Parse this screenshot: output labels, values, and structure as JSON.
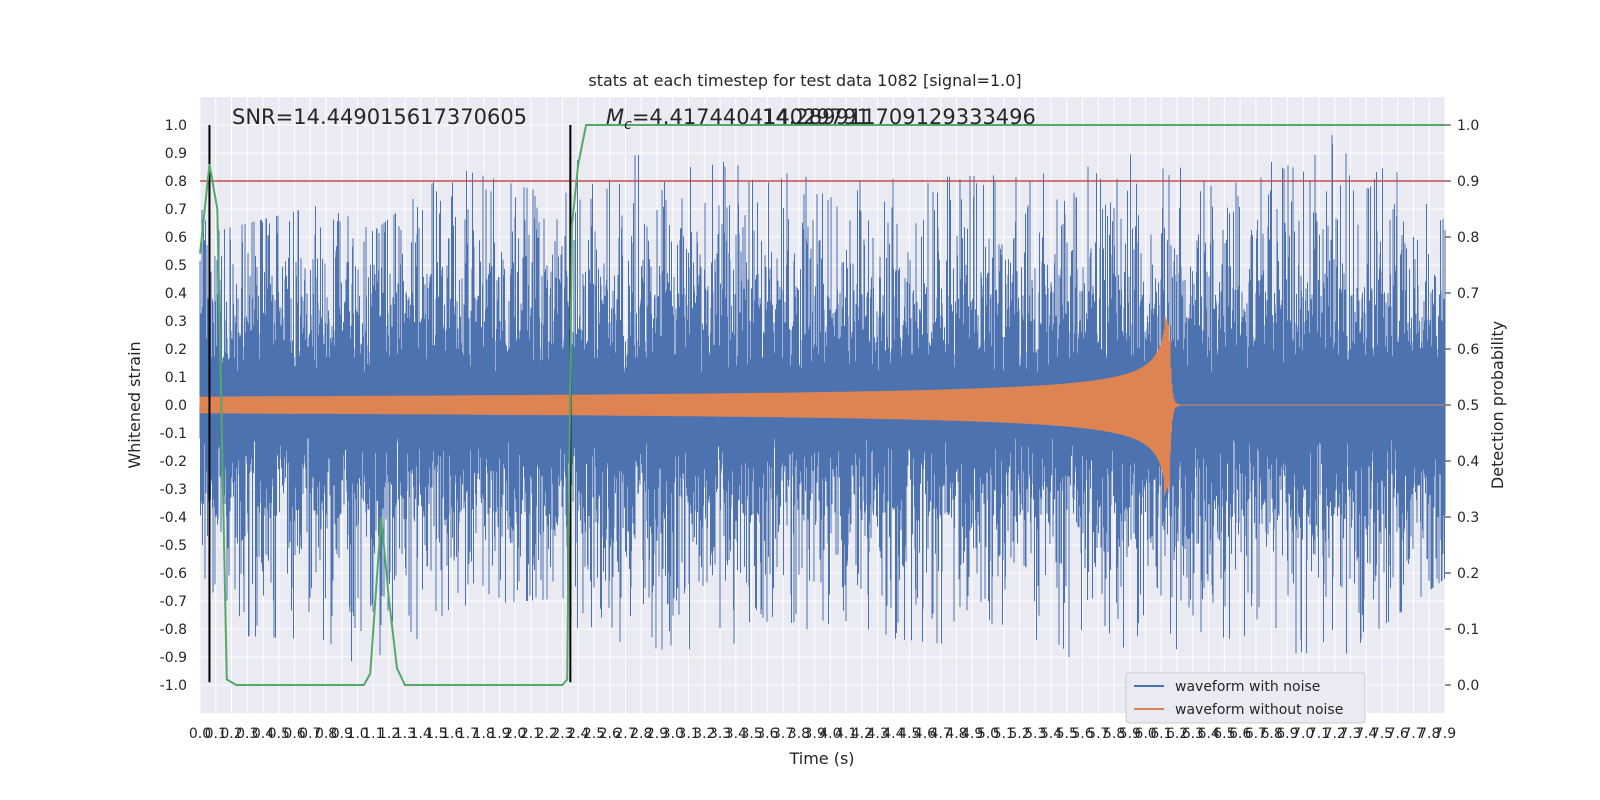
{
  "chart_data": {
    "type": "line",
    "title": "stats at each timestep for test data 1082 [signal=1.0]",
    "xlabel": "Time (s)",
    "ylabel": "Whitened strain",
    "ylabel_right": "Detection probability",
    "xlim": [
      0.0,
      7.9
    ],
    "ylim": [
      -1.1,
      1.1
    ],
    "ylim_right": [
      -0.05,
      1.05
    ],
    "x_ticks": [
      0.0,
      0.1,
      0.2,
      0.3,
      0.4,
      0.5,
      0.6,
      0.7,
      0.8,
      0.9,
      1.0,
      1.1,
      1.2,
      1.3,
      1.4,
      1.5,
      1.6,
      1.7,
      1.8,
      1.9,
      2.0,
      2.1,
      2.2,
      2.3,
      2.4,
      2.5,
      2.6,
      2.7,
      2.8,
      2.9,
      3.0,
      3.1,
      3.2,
      3.3,
      3.4,
      3.5,
      3.6,
      3.7,
      3.8,
      3.9,
      4.0,
      4.1,
      4.2,
      4.3,
      4.4,
      4.5,
      4.6,
      4.7,
      4.8,
      4.9,
      5.0,
      5.1,
      5.2,
      5.3,
      5.4,
      5.5,
      5.6,
      5.7,
      5.8,
      5.9,
      6.0,
      6.1,
      6.2,
      6.3,
      6.4,
      6.5,
      6.6,
      6.7,
      6.8,
      6.9,
      7.0,
      7.1,
      7.2,
      7.3,
      7.4,
      7.5,
      7.6,
      7.7,
      7.8,
      7.9
    ],
    "y_ticks_left": [
      1.0,
      0.9,
      0.8,
      0.7,
      0.6,
      0.5,
      0.4,
      0.3,
      0.2,
      0.1,
      0.0,
      -0.1,
      -0.2,
      -0.3,
      -0.4,
      -0.5,
      -0.6,
      -0.7,
      -0.8,
      -0.9,
      -1.0
    ],
    "y_ticks_right": [
      1.0,
      0.9,
      0.8,
      0.7,
      0.6,
      0.5,
      0.4,
      0.3,
      0.2,
      0.1,
      0.0
    ],
    "grid": true,
    "legend_position": "bottom-right",
    "annotations": {
      "snr": "SNR=14.449015617370605",
      "mc_prefix": "M",
      "mc_sub": "c",
      "mc_value": "=4.417440414029791",
      "mc_overlap": "14.289911709129333496"
    },
    "threshold": {
      "value": 0.9,
      "axis": "right",
      "color": "#c44e52"
    },
    "vertical_markers": [
      0.06,
      2.35
    ],
    "colors": {
      "noise": "#4c72b0",
      "clean": "#dd8452",
      "prob": "#55a868",
      "threshold": "#c44e52",
      "marker": "#000000",
      "plot_bg": "#eaeaf2",
      "grid": "#ffffff"
    },
    "series": [
      {
        "name": "waveform with noise",
        "axis": "left",
        "kind": "noise",
        "envelope": {
          "t": [
            0.0,
            0.1,
            0.8,
            1.1,
            1.6,
            2.3,
            2.4,
            3.0,
            4.0,
            5.5,
            6.0,
            6.5,
            7.2,
            7.9
          ],
          "max": [
            0.93,
            0.62,
            0.72,
            0.62,
            0.85,
            0.74,
            0.88,
            0.9,
            0.8,
            0.83,
            0.91,
            0.77,
            1.0,
            0.98
          ],
          "min": [
            -0.53,
            -0.82,
            -0.84,
            -0.98,
            -0.72,
            -0.69,
            -0.82,
            -0.88,
            -0.81,
            -0.9,
            -0.9,
            -0.83,
            -0.92,
            -0.62
          ]
        }
      },
      {
        "name": "waveform without noise",
        "axis": "left",
        "kind": "chirp",
        "t_start": 0.0,
        "t_merge": 6.15,
        "amp_start": 0.03,
        "amp_peak": 0.28
      },
      {
        "name": "detection probability",
        "axis": "right",
        "kind": "line",
        "x": [
          0.0,
          0.06,
          0.11,
          0.17,
          0.23,
          0.3,
          0.5,
          0.8,
          1.0,
          1.04,
          1.08,
          1.15,
          1.2,
          1.25,
          1.3,
          1.4,
          2.0,
          2.25,
          2.3,
          2.33,
          2.36,
          2.4,
          2.45,
          7.9
        ],
        "y": [
          0.77,
          0.93,
          0.85,
          0.01,
          0.0,
          0.0,
          0.0,
          0.0,
          0.0,
          0.0,
          0.02,
          0.3,
          0.15,
          0.03,
          0.0,
          0.0,
          0.0,
          0.0,
          0.0,
          0.01,
          0.82,
          0.93,
          1.0,
          1.0
        ]
      }
    ]
  },
  "legend": {
    "items": [
      {
        "label": "waveform with noise",
        "color": "#4c72b0"
      },
      {
        "label": "waveform without noise",
        "color": "#dd8452"
      }
    ]
  }
}
